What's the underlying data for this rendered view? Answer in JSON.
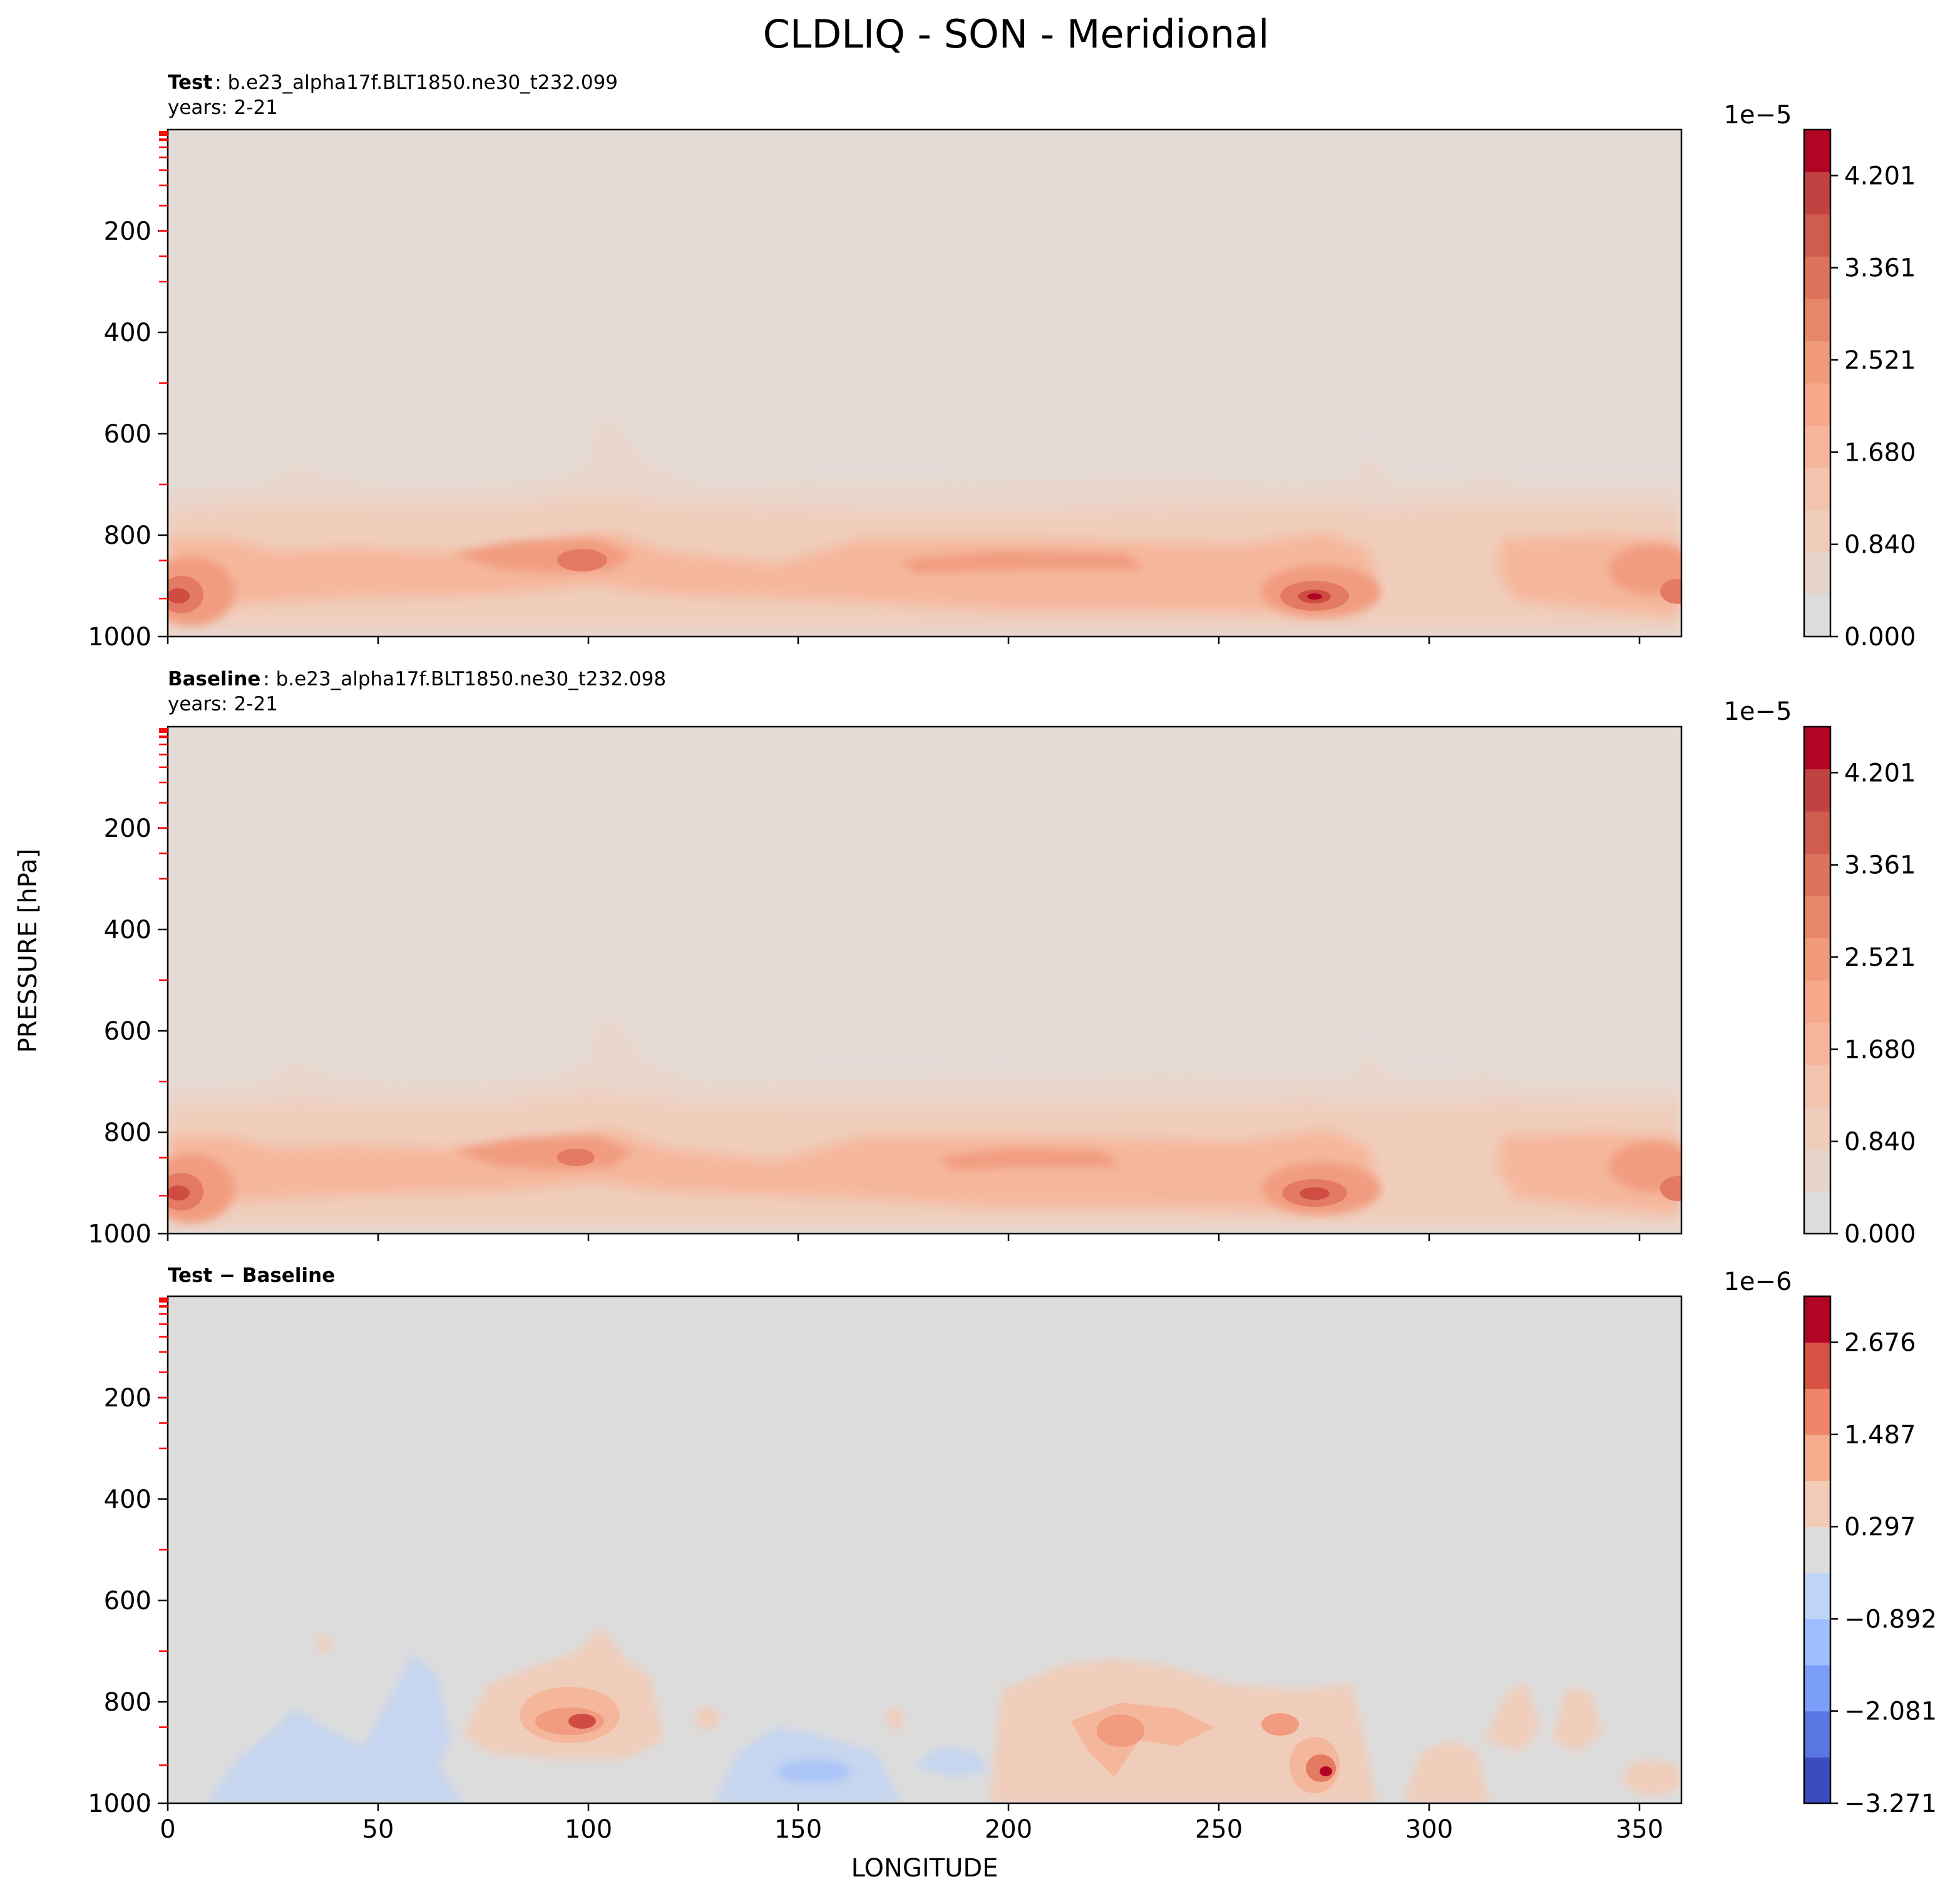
{
  "chart_data": {
    "type": "heatmap",
    "title": "CLDLIQ - SON - Meridional",
    "xlabel": "LONGITUDE",
    "ylabel": "PRESSURE [hPa]",
    "xlim": [
      0,
      360
    ],
    "ylim": [
      1000,
      0
    ],
    "x_ticks": [
      "0",
      "50",
      "100",
      "150",
      "200",
      "250",
      "300",
      "350"
    ],
    "y_ticks": [
      "200",
      "400",
      "600",
      "800",
      "1000"
    ],
    "colors": {
      "background_positive": "#e3dbd6",
      "background_diff": "#dcdcdc",
      "bands": [
        "#f0cdbb",
        "#f5b79c",
        "#f19c80",
        "#e47a62",
        "#cf4c43"
      ],
      "pressure_level_ticks": "#ff0000"
    },
    "panels": [
      {
        "name": "test",
        "label": "Test",
        "case": ": b.e23_alpha17f.BLT1850.ne30_t232.099",
        "years": "years: 2-21",
        "colorbar_offset": "1e−5",
        "colorbar_ticks": [
          "0.000",
          "0.840",
          "1.680",
          "2.521",
          "3.361",
          "4.201"
        ],
        "colorbar_min": 0,
        "colorbar_max": 4.62,
        "levels": 11
      },
      {
        "name": "baseline",
        "label": "Baseline",
        "case": ": b.e23_alpha17f.BLT1850.ne30_t232.098",
        "years": "years: 2-21",
        "colorbar_offset": "1e−5",
        "colorbar_ticks": [
          "0.000",
          "0.840",
          "1.680",
          "2.521",
          "3.361",
          "4.201"
        ],
        "colorbar_min": 0,
        "colorbar_max": 4.62,
        "levels": 11
      },
      {
        "name": "difference",
        "label": "Test − Baseline",
        "case": "",
        "years": "",
        "colorbar_offset": "1e−6",
        "colorbar_ticks": [
          "−3.271",
          "−2.081",
          "−0.892",
          "0.297",
          "1.487",
          "2.676"
        ],
        "colorbar_min": -3.271,
        "colorbar_max": 3.27,
        "levels": 11
      }
    ]
  }
}
